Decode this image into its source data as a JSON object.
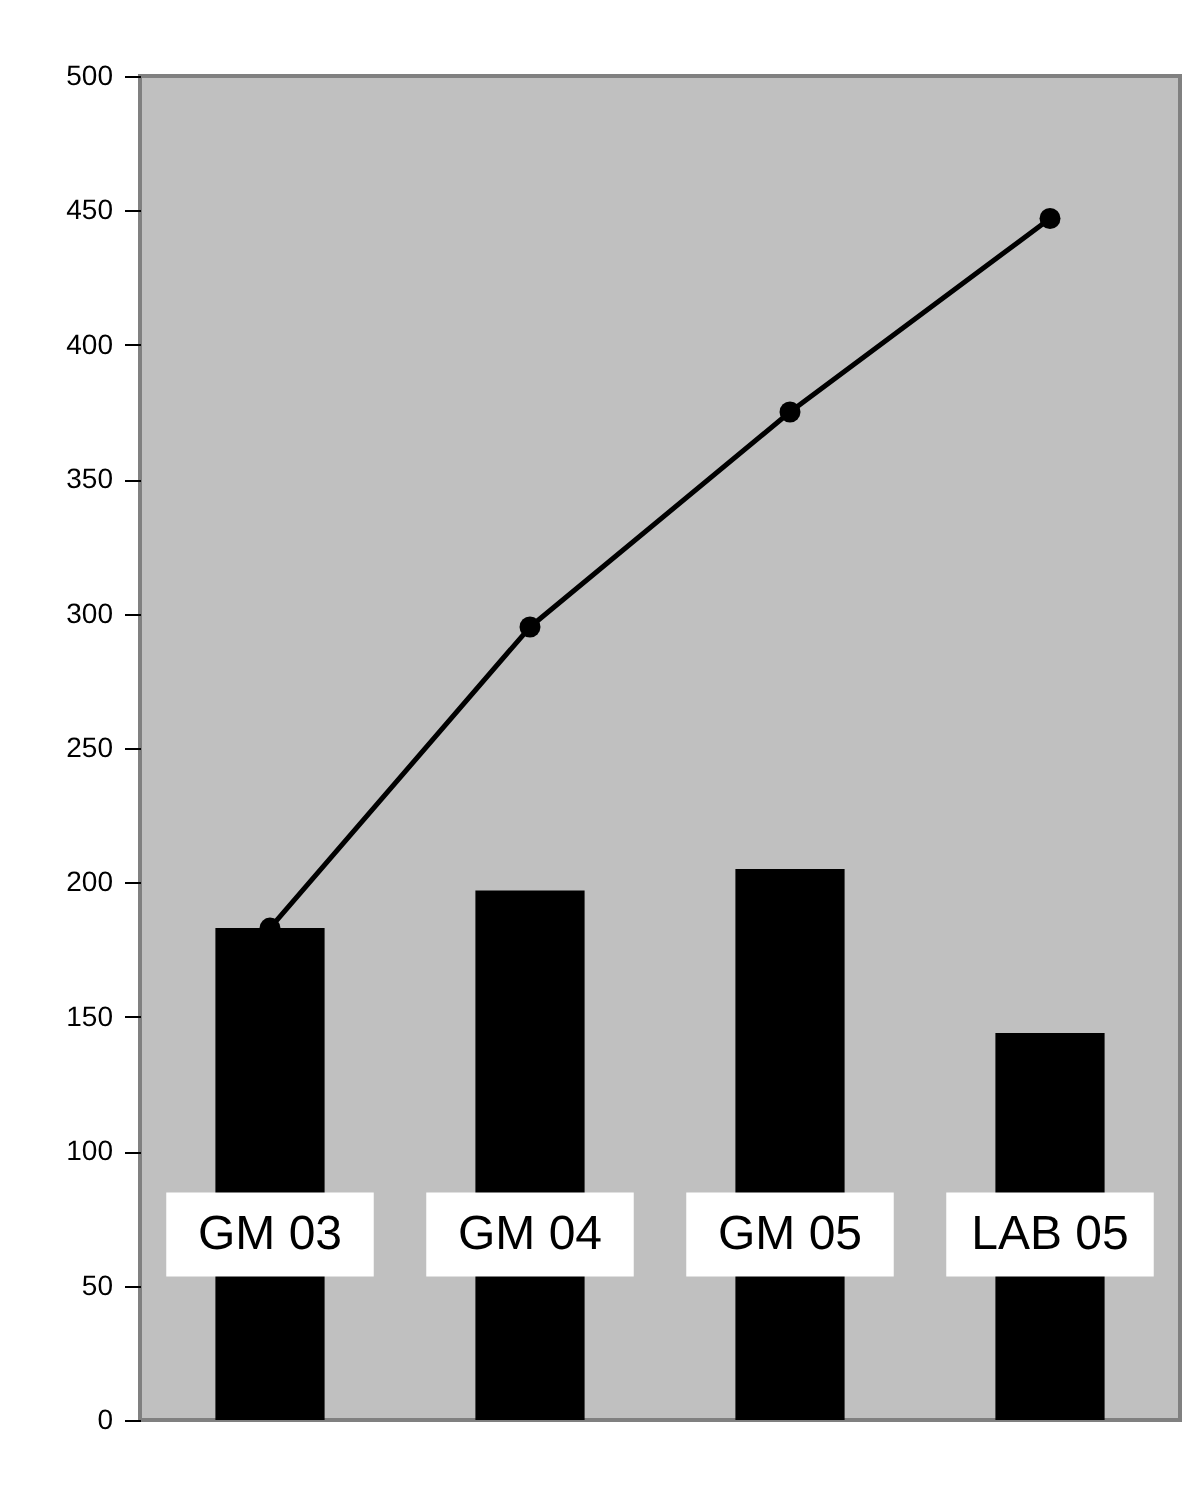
{
  "chart_data": {
    "type": "bar",
    "categories": [
      "GM 03",
      "GM 04",
      "GM 05",
      "LAB 05"
    ],
    "series": [
      {
        "color": "#000000",
        "values": [
          183,
          197,
          205,
          144
        ]
      },
      {
        "type": "line",
        "color": "#000000",
        "values": [
          183,
          295,
          375,
          447
        ],
        "marker": "circle"
      }
    ],
    "ylim": [
      0,
      500
    ],
    "yticks": [
      0,
      50,
      100,
      150,
      200,
      250,
      300,
      350,
      400,
      450,
      500
    ],
    "grid": false
  }
}
